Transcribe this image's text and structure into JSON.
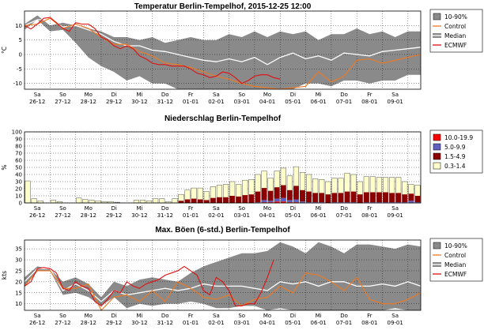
{
  "chart_data": [
    {
      "type": "line",
      "title": "Temperatur Berlin-Tempelhof, 2015-12-25 12:00",
      "ylabel": "°C",
      "ylim": [
        -12,
        15
      ],
      "yticks": [
        10,
        5,
        0,
        -5,
        -10
      ],
      "grid": true,
      "x_range": [
        0,
        15.5
      ],
      "day_labels": [
        {
          "day": "Sa",
          "date": "26-12"
        },
        {
          "day": "So",
          "date": "27-12"
        },
        {
          "day": "Mo",
          "date": "28-12"
        },
        {
          "day": "Di",
          "date": "29-12"
        },
        {
          "day": "Mi",
          "date": "30-12"
        },
        {
          "day": "Do",
          "date": "31-12"
        },
        {
          "day": "Fr",
          "date": "01-01"
        },
        {
          "day": "Sa",
          "date": "02-01"
        },
        {
          "day": "So",
          "date": "03-01"
        },
        {
          "day": "Mo",
          "date": "04-01"
        },
        {
          "day": "Di",
          "date": "05-01"
        },
        {
          "day": "Mi",
          "date": "06-01"
        },
        {
          "day": "Do",
          "date": "07-01"
        },
        {
          "day": "Fr",
          "date": "08-01"
        },
        {
          "day": "Sa",
          "date": "09-01"
        }
      ],
      "legend": [
        "10-90%",
        "Control",
        "Median",
        "ECMWF"
      ],
      "legend_position": "right",
      "colors": {
        "band": "#8a8a8a",
        "control": "#f07820",
        "median": "#ffffff",
        "ecmwf": "#e01010",
        "bg": "#ffffff"
      },
      "band_x": [
        0,
        0.5,
        1,
        1.5,
        2,
        2.5,
        3,
        3.5,
        4,
        4.5,
        5,
        5.5,
        6,
        6.5,
        7,
        7.5,
        8,
        8.5,
        9,
        9.5,
        10,
        10.5,
        11,
        11.5,
        12,
        12.5,
        13,
        13.5,
        14,
        14.5,
        15,
        15.5
      ],
      "band_low": [
        8.5,
        12,
        8,
        8.5,
        4,
        -1,
        -4,
        -6,
        -9,
        -7.5,
        -10,
        -10,
        -12,
        -12,
        -12,
        -12,
        -12,
        -12,
        -12,
        -12,
        -12,
        -12,
        -10,
        -10,
        -11,
        -9,
        -9,
        -10,
        -9,
        -9,
        -7,
        -7
      ],
      "band_high": [
        10.5,
        13.5,
        10,
        11,
        10,
        9,
        8,
        6,
        6,
        5,
        6,
        4,
        5,
        6,
        5,
        5,
        7,
        6,
        8,
        6,
        8,
        7,
        8,
        5,
        7,
        7,
        9,
        7,
        8,
        6,
        8,
        8
      ],
      "series": [
        {
          "name": "ECMWF",
          "x": [
            0,
            0.25,
            0.5,
            0.75,
            1,
            1.25,
            1.5,
            1.75,
            2,
            2.25,
            2.5,
            2.75,
            3,
            3.25,
            3.5,
            3.75,
            4,
            4.25,
            4.5,
            4.75,
            5,
            5.25,
            5.5,
            5.75,
            6,
            6.25,
            6.5,
            6.75,
            7,
            7.25,
            7.5,
            7.75,
            8,
            8.25,
            8.5,
            8.75,
            9,
            9.25,
            9.5,
            9.75,
            10
          ],
          "y": [
            10,
            8.8,
            10.5,
            12.5,
            12.8,
            11,
            9,
            8,
            11,
            10.5,
            10.5,
            9,
            6,
            5,
            3,
            2,
            3,
            2,
            -0.5,
            -1.5,
            -3,
            -3.5,
            -3.5,
            -4,
            -4,
            -4,
            -5,
            -6.5,
            -7,
            -8,
            -7.5,
            -6,
            -6.5,
            -8,
            -10,
            -9,
            -7.5,
            -7,
            -7,
            -8,
            -8.5
          ]
        },
        {
          "name": "Control",
          "x": [
            0,
            0.5,
            1,
            1.5,
            2,
            2.5,
            3,
            3.5,
            4,
            4.5,
            5,
            5.5,
            6,
            6.5,
            7,
            7.5,
            8,
            8.5,
            9,
            9.5,
            10,
            10.5,
            11,
            11.5,
            12,
            12.5,
            13,
            13.5,
            14,
            14.5,
            15,
            15.5
          ],
          "y": [
            10,
            10.5,
            12.5,
            9,
            10.5,
            9,
            6,
            3.5,
            3.5,
            1,
            -0.5,
            -3,
            -3.5,
            -4.5,
            -6,
            -7.5,
            -8.5,
            -10,
            -11,
            -11.5,
            -12,
            -11.5,
            -11,
            -6,
            -9.5,
            -7.5,
            -2,
            -1.5,
            -3,
            -2,
            -1,
            0
          ]
        },
        {
          "name": "Median",
          "x": [
            0,
            0.5,
            1,
            1.5,
            2,
            2.5,
            3,
            3.5,
            4,
            4.5,
            5,
            5.5,
            6,
            6.5,
            7,
            7.5,
            8,
            8.5,
            9,
            9.5,
            10,
            10.5,
            11,
            11.5,
            12,
            12.5,
            13,
            13.5,
            14,
            14.5,
            15,
            15.5
          ],
          "y": [
            10,
            12,
            12,
            9.5,
            10,
            8.5,
            7,
            4.5,
            3,
            3,
            1.5,
            1,
            0,
            -1,
            -2,
            -2.5,
            -1.5,
            -2.5,
            -1,
            -3.5,
            -1,
            0.5,
            -1.5,
            -0.5,
            -2,
            0.5,
            0,
            -0.5,
            1,
            1.5,
            2,
            2.5
          ]
        }
      ]
    },
    {
      "type": "bar",
      "title": "Niederschlag Berlin-Tempelhof",
      "ylabel": "%",
      "ylim": [
        0,
        100
      ],
      "yticks": [
        100,
        90,
        80,
        70,
        60,
        50,
        40,
        30,
        20,
        10,
        0
      ],
      "grid": true,
      "x_range": [
        0,
        15.5
      ],
      "day_labels_ref": "same as temperature chart",
      "legend": [
        "10.0-19.9",
        "5.0-9.9",
        "1.5-4.9",
        "0.3-1.4"
      ],
      "legend_position": "right",
      "colors": {
        "c10_19": "#ff0000",
        "c5_9": "#6060c0",
        "c1_4": "#8b0000",
        "c0_1": "#ffffcc",
        "bar_edge": "#555555"
      },
      "bars_x": [
        0.125,
        0.375,
        0.625,
        1.125,
        1.375,
        2.125,
        2.375,
        2.625,
        2.875,
        3.125,
        3.375,
        3.625,
        4.375,
        4.625,
        4.875,
        5.125,
        5.375,
        5.625,
        5.875,
        6.125,
        6.375,
        6.625,
        6.875,
        7.125,
        7.375,
        7.625,
        7.875,
        8.125,
        8.375,
        8.625,
        8.875,
        9.125,
        9.375,
        9.625,
        9.875,
        10.125,
        10.375,
        10.625,
        10.875,
        11.125,
        11.375,
        11.625,
        11.875,
        12.125,
        12.375,
        12.625,
        12.875,
        13.125,
        13.375,
        13.625,
        13.875,
        14.125,
        14.375,
        14.625,
        14.875,
        15.125,
        15.375
      ],
      "bars_total": [
        31,
        6,
        3,
        4,
        2,
        7,
        5,
        4,
        3,
        2,
        2,
        1,
        4,
        4,
        3,
        6,
        6,
        2,
        6,
        12,
        18,
        21,
        21,
        16,
        23,
        25,
        26,
        30,
        26,
        32,
        33,
        40,
        45,
        35,
        45,
        49,
        38,
        51,
        43,
        40,
        34,
        33,
        30,
        35,
        35,
        42,
        40,
        30,
        37,
        37,
        36,
        36,
        36,
        36,
        30,
        26,
        25
      ],
      "bars_c1_4": [
        0,
        0,
        0,
        0,
        0,
        0,
        0,
        0,
        0,
        0,
        0,
        0,
        0,
        0,
        0,
        0,
        0,
        0,
        0,
        3,
        5,
        6,
        5,
        4,
        7,
        8,
        8,
        10,
        9,
        11,
        12,
        15,
        17,
        14,
        16,
        18,
        14,
        19,
        16,
        15,
        13,
        13,
        12,
        13,
        13,
        15,
        15,
        12,
        14,
        14,
        14,
        14,
        13,
        13,
        11,
        10,
        9
      ],
      "bars_c5_9": [
        0,
        0,
        0,
        0,
        0,
        0,
        0,
        0,
        0,
        0,
        0,
        0,
        0,
        0,
        0,
        0,
        0,
        0,
        0,
        0,
        0,
        0,
        0,
        0,
        0,
        0,
        0,
        0,
        0,
        0,
        0,
        1,
        3,
        2,
        4,
        5,
        3,
        4,
        2,
        1,
        1,
        1,
        0,
        1,
        1,
        1,
        1,
        0,
        1,
        1,
        1,
        1,
        1,
        1,
        1,
        3,
        1
      ],
      "bars_c10_19": [
        0,
        0,
        0,
        0,
        0,
        0,
        0,
        0,
        0,
        0,
        0,
        0,
        0,
        0,
        0,
        0,
        0,
        0,
        0,
        0,
        0,
        0,
        0,
        0,
        0,
        0,
        0,
        0,
        0,
        0,
        0,
        0,
        1,
        1,
        2,
        2,
        1,
        1,
        0,
        0,
        0,
        0,
        0,
        0,
        0,
        0,
        0,
        0,
        0,
        0,
        0,
        0,
        0,
        0,
        0,
        0,
        0
      ]
    },
    {
      "type": "line",
      "title": "Max. Böen (6-std.) Berlin-Tempelhof",
      "ylabel": "kts",
      "ylim": [
        7,
        39
      ],
      "yticks": [
        35,
        30,
        25,
        20,
        15,
        10
      ],
      "grid": true,
      "x_range": [
        0,
        15.5
      ],
      "day_labels_ref": "same as temperature chart",
      "legend": [
        "10-90%",
        "Control",
        "Median",
        "ECMWF"
      ],
      "legend_position": "right",
      "colors": {
        "band": "#8a8a8a",
        "control": "#f07820",
        "median": "#ffffff",
        "ecmwf": "#e01010"
      },
      "band_x": [
        0,
        0.5,
        1,
        1.5,
        2,
        2.5,
        3,
        3.5,
        4,
        4.5,
        5,
        5.5,
        6,
        6.5,
        7,
        7.5,
        8,
        8.5,
        9,
        9.5,
        10,
        10.5,
        11,
        11.5,
        12,
        12.5,
        13,
        13.5,
        14,
        14.5,
        15,
        15.5
      ],
      "band_low": [
        18,
        25,
        25,
        14,
        15,
        13,
        9,
        13,
        8,
        10,
        9,
        10,
        10,
        11,
        10,
        8,
        8,
        9,
        9,
        7,
        8,
        7,
        7,
        7,
        7,
        7,
        7,
        7,
        7,
        8,
        7,
        7
      ],
      "band_high": [
        22,
        27,
        26,
        20,
        22,
        19,
        13,
        20,
        18,
        21,
        22,
        21,
        20,
        24,
        27,
        29,
        31,
        33,
        33,
        34,
        38,
        36,
        33,
        38,
        36,
        33,
        37,
        37,
        36,
        35,
        37,
        36
      ],
      "series": [
        {
          "name": "ECMWF",
          "x": [
            0,
            0.25,
            0.5,
            0.75,
            1,
            1.25,
            1.5,
            1.75,
            2,
            2.25,
            2.5,
            2.75,
            3,
            3.25,
            3.5,
            3.75,
            4,
            4.25,
            4.5,
            4.75,
            5,
            5.25,
            5.5,
            5.75,
            6,
            6.25,
            6.5,
            6.75,
            7,
            7.25,
            7.5,
            7.75,
            8,
            8.25,
            8.5,
            8.75,
            9,
            9.25,
            9.5,
            9.75
          ],
          "y": [
            18,
            20,
            26,
            26.5,
            26,
            24,
            17,
            16,
            20,
            18,
            17,
            11,
            9,
            12,
            16,
            15,
            20,
            18,
            17,
            19,
            20,
            21,
            23,
            24,
            25,
            27,
            25,
            23,
            16,
            14,
            22,
            20,
            16,
            9,
            9,
            10,
            10,
            15,
            22,
            30
          ]
        },
        {
          "name": "Control",
          "x": [
            0,
            0.5,
            1,
            1.5,
            2,
            2.5,
            3,
            3.5,
            4,
            4.5,
            5,
            5.5,
            6,
            6.5,
            7,
            7.5,
            8,
            8.5,
            9,
            9.5,
            10,
            10.5,
            11,
            11.5,
            12,
            12.5,
            13,
            13.5,
            14,
            14.5,
            15,
            15.5
          ],
          "y": [
            18,
            25,
            25,
            17,
            17,
            19,
            7,
            13,
            14,
            11,
            16,
            11,
            20,
            17,
            13,
            12,
            14,
            9,
            12,
            13,
            18,
            15,
            24,
            23,
            20,
            16,
            22,
            12,
            10,
            10,
            12,
            15
          ]
        },
        {
          "name": "Median",
          "x": [
            0,
            0.5,
            1,
            1.5,
            2,
            2.5,
            3,
            3.5,
            4,
            4.5,
            5,
            5.5,
            6,
            6.5,
            7,
            7.5,
            8,
            8.5,
            9,
            9.5,
            10,
            10.5,
            11,
            11.5,
            12,
            12.5,
            13,
            13.5,
            14,
            14.5,
            15,
            15.5
          ],
          "y": [
            20,
            26,
            26,
            16,
            19,
            16,
            11,
            16,
            14,
            15,
            16,
            17,
            16,
            17,
            19,
            18,
            18,
            18,
            17,
            16,
            20,
            19,
            20,
            18,
            20,
            20,
            18,
            18,
            19,
            18,
            20,
            18
          ]
        }
      ]
    }
  ]
}
